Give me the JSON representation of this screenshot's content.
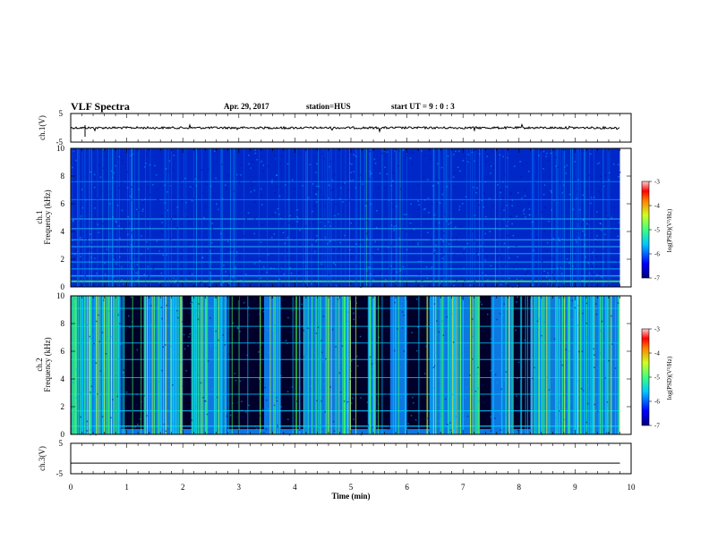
{
  "header": {
    "title": "VLF Spectra",
    "date": "Apr. 29, 2017",
    "station": "station=HUS",
    "start": "start  UT =   9 : 0  : 3"
  },
  "chart_data": [
    {
      "type": "line",
      "panel": "ch1-waveform",
      "ylabel": "ch.1(V)",
      "ylim": [
        -5,
        5
      ],
      "yticks": [
        "5",
        "-5"
      ],
      "x": [
        0,
        10
      ],
      "values": [
        0,
        0
      ],
      "color": "#000000"
    },
    {
      "type": "heatmap",
      "panel": "ch1-spectrogram",
      "ylabel_top": "ch.1",
      "ylabel": "Frequency (kHz)",
      "ylim": [
        0,
        10
      ],
      "yticks": [
        "0",
        "2",
        "4",
        "6",
        "8",
        "10"
      ],
      "xlim": [
        0,
        9.8
      ],
      "colorbar": {
        "label": "log(PSD)(V²/Hz)",
        "ticks": [
          "-3",
          "-4",
          "-5",
          "-6",
          "-7"
        ],
        "range": [
          -7,
          -3
        ]
      },
      "description_levels": "mostly -6 to -5 (blue) with horizontal lines near 0.5, 1-3, 5 kHz"
    },
    {
      "type": "heatmap",
      "panel": "ch2-spectrogram",
      "ylabel_top": "ch.2",
      "ylabel": "Frequency (kHz)",
      "ylim": [
        0,
        10
      ],
      "yticks": [
        "0",
        "2",
        "4",
        "6",
        "8",
        "10"
      ],
      "xlim": [
        0,
        9.8
      ],
      "colorbar": {
        "label": "log(PSD)(V²/Hz)",
        "ticks": [
          "-3",
          "-4",
          "-5",
          "-6",
          "-7"
        ],
        "range": [
          -7,
          -3
        ]
      },
      "quiet_intervals_min": [
        [
          0.9,
          1.3
        ],
        [
          2.0,
          2.15
        ],
        [
          2.8,
          3.45
        ],
        [
          3.75,
          4.15
        ],
        [
          5.0,
          5.3
        ],
        [
          5.45,
          5.7
        ],
        [
          6.0,
          6.4
        ],
        [
          7.3,
          7.5
        ],
        [
          7.9,
          8.2
        ]
      ]
    },
    {
      "type": "line",
      "panel": "ch3-waveform",
      "ylabel": "ch.3(V)",
      "ylim": [
        -5,
        5
      ],
      "yticks": [
        "5",
        "0",
        "-5"
      ],
      "x": [
        0,
        9.8
      ],
      "values": [
        -1.5,
        -1.5
      ],
      "color": "#000000"
    }
  ],
  "xaxis": {
    "label": "Time (min)",
    "ticks": [
      "0",
      "1",
      "2",
      "3",
      "4",
      "5",
      "6",
      "7",
      "8",
      "9",
      "10"
    ],
    "range": [
      0,
      10
    ]
  },
  "colors": {
    "dark": "#00002a",
    "blue": "#0030d8",
    "cyan": "#00c8ff",
    "green": "#40ff60",
    "yellow": "#e8ff30"
  }
}
